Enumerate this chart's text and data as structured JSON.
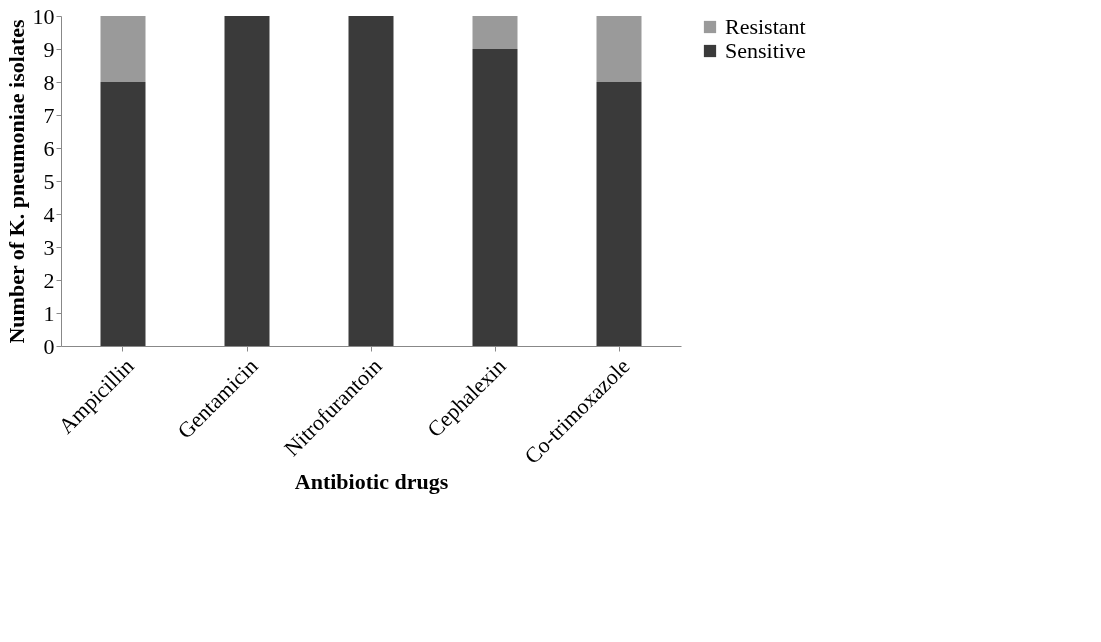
{
  "chart_data": {
    "type": "bar",
    "stacked": true,
    "xlabel": "Antibiotic drugs",
    "ylabel": "Number of K. pneumoniae isolates",
    "categories": [
      "Ampicillin",
      "Gentamicin",
      "Nitrofurantoin",
      "Cephalexin",
      "Co-trimoxazole"
    ],
    "series": [
      {
        "name": "Sensitive",
        "color": "#3a3a3a",
        "values": [
          8,
          10,
          10,
          9,
          8
        ]
      },
      {
        "name": "Resistant",
        "color": "#9a9a9a",
        "values": [
          2,
          0,
          0,
          1,
          2
        ]
      }
    ],
    "ylim": [
      0,
      10
    ],
    "yticks": [
      0,
      1,
      2,
      3,
      4,
      5,
      6,
      7,
      8,
      9,
      10
    ],
    "grid": false,
    "legend": "right"
  }
}
